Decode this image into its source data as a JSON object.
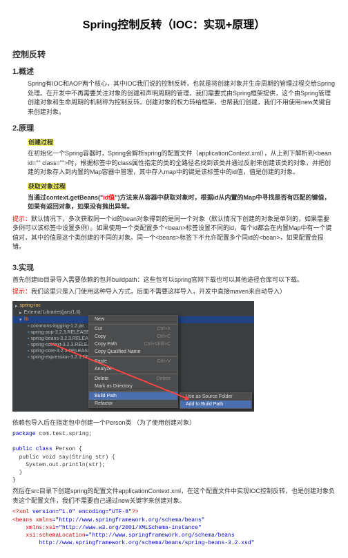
{
  "title": "Spring控制反转（IOC：实现+原理）",
  "h2_1": "控制反转",
  "s1": {
    "h": "1.概述",
    "p": "Spring有IOC和AOP两个核心，其中IOC我们说的控制反转，也就是将创建对象并生命周期的管理过程交给Spring处理。在开发中不再需要关注对象的创建和声明周期的管理，我们需要式由Spring框架提供，这个由Spring管理创建对象和生命周期的机制称为控制反转。创建对象的权力转给框架，也帮我们创建，我们不用使用new关键自来创建对象。"
  },
  "s2": {
    "h": "2.原理",
    "sub1": "创建过程",
    "p1": "在初始化一个Spring容器时，Spring会解析spring的配置文件（applicationContext.xml），从上到下解析到<bean id=\"\" class=\"\">时，根据标签中的class属性指定的类的全路径名找到该类并通过反射来创建该类的对象，并把创建的对象存入到内置的Map容器中管理，其中存入map中的键是该标签中的id值，值是创建的对象。",
    "sub2": "获取对象过程",
    "p2a": "当通过context.getBeans(\"",
    "p2b": "id值",
    "p2c": "\")方法来从容器中获取对象时，根据id从内置的Map中寻找是否有匹配的键值，如果有返回对象，如果没有抛出异常。",
    "tip_label": "提示：",
    "tip": "默认情况下，多次获取同一个id的bean对象得到的是同一个对象（默认情况下创建的对象是单列的，如果需要多例可以该标签中设置多例）。如果使用一个类配置多个<bean>标签设置不同的id，每个id都会在内置Map中有一个键值对，其中的值是这个类创建的不同的对象。同一个<beans>标签下不允许配置多个同id的<bean>，如果配置会报错。"
  },
  "s3": {
    "h": "3.实现",
    "p1": "首先创建lib目录导入需要依赖的包并buildpath：这些包可以spring官网下载也可以其他途径仓库可以下载。",
    "tip_label": "提示：",
    "tip": "我们这里只是入门使用这种导入方式，后面不需要这样导入，开发中直接maven来自动导入）",
    "tree": {
      "root": "spring-ioc",
      "sub": "External Libraries",
      "lib_label": "lib",
      "items": [
        "commons-logging-1.2.jar",
        "spring-aop-3.2.3.RELEASE.jar",
        "spring-beans-3.2.3.RELEASE.jar",
        "spring-context-3.2.3.RELEASE.jar",
        "spring-core-3.2.3.RELEASE.jar",
        "spring-expression-3.2.3.RELEASE.jar"
      ]
    },
    "menu1": {
      "items": [
        {
          "l": "New",
          "r": ""
        },
        {
          "l": "Cut",
          "r": "Ctrl+X"
        },
        {
          "l": "Copy",
          "r": "Ctrl+C"
        },
        {
          "l": "Copy Path",
          "r": "Ctrl+Shift+C"
        },
        {
          "l": "Copy Qualified Name",
          "r": ""
        },
        {
          "l": "Paste",
          "r": "Ctrl+V"
        },
        {
          "l": "Analyze",
          "r": ""
        },
        {
          "l": "Delete",
          "r": "Delete"
        },
        {
          "l": "Mark as Directory",
          "r": ""
        },
        {
          "l": "Build Path",
          "r": ""
        },
        {
          "l": "Refactor",
          "r": ""
        }
      ],
      "sel_index": 9
    },
    "menu2": {
      "items": [
        {
          "l": "Use as Source Folder"
        },
        {
          "l": "Add to Build Path"
        }
      ],
      "sel_index": 1
    },
    "p2": "依赖包导入后在指定包中创建一个Person类 （为了使用创建对象）",
    "code1": {
      "pkg_kw": "package",
      "pkg": " com.test.spring;",
      "pub": "public",
      "cls_kw": "class",
      "cls": " Person {",
      "m1": "  public void say(String str) {",
      "m2": "    System.out.println(str);",
      "m3": "  }",
      "end": "}"
    },
    "p3": "然后在src目录下创建spring的配置文件applicationContext.xml，在这个配置文件中实现IOC控制反转，也是创建对象负责这个配置文件，我们不需要自己通过new关键字来创建对象。",
    "xml": {
      "decl_open": "<?xml",
      "decl_attrs": " version=\"1.0\" encoding=\"UTF-8\"",
      "decl_close": "?>",
      "beans_open": "<beans",
      "xmlns_attr": " xmlns",
      "xmlns_val": "=\"http://www.springframework.org/schema/beans\"",
      "xsi_attr": "    xmlns:xsi",
      "xsi_val": "=\"http://www.w3.org/2001/XMLSchema-instance\"",
      "loc_attr": "    xsi:schemaLocation",
      "loc_val1": "=\"http://www.springframework.org/schema/beans",
      "loc_val2": "        http://www.springframework.org/schema/beans/spring-beans-3.2.xsd\""
    }
  }
}
